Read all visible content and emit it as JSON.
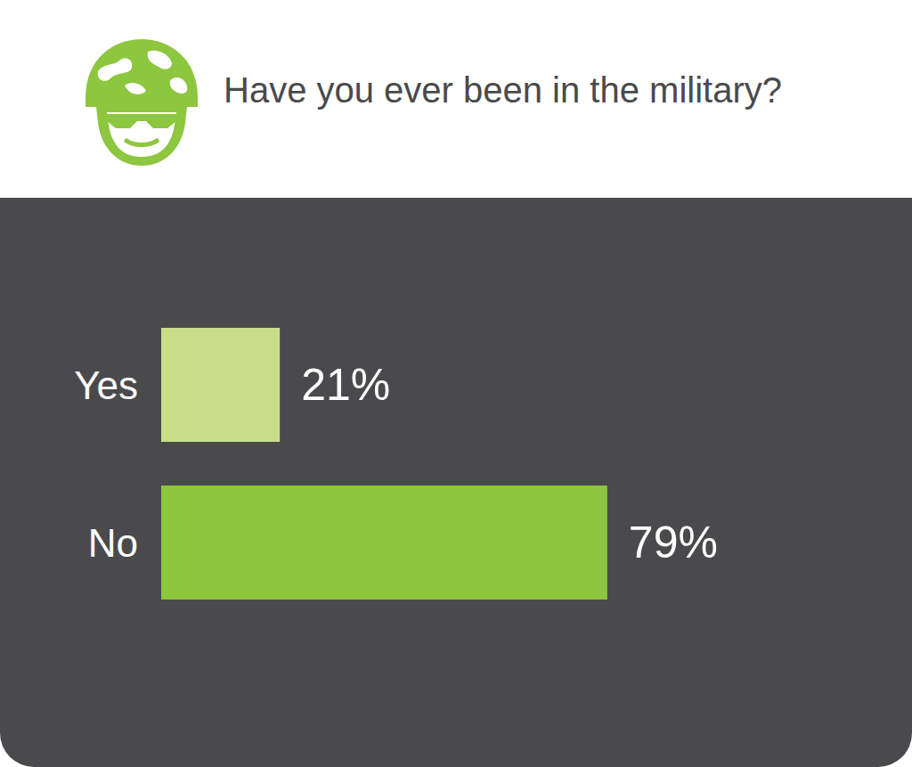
{
  "chart_data": {
    "type": "bar",
    "title": "Have you ever been in the military?",
    "orientation": "horizontal",
    "categories": [
      "Yes",
      "No"
    ],
    "values": [
      21,
      79
    ],
    "value_labels": [
      "21%",
      "79%"
    ],
    "colors": [
      "#c8df8a",
      "#8dc63f"
    ],
    "xlim": [
      0,
      100
    ],
    "grid": false,
    "data_labels": true,
    "tick_labels": "y"
  }
}
